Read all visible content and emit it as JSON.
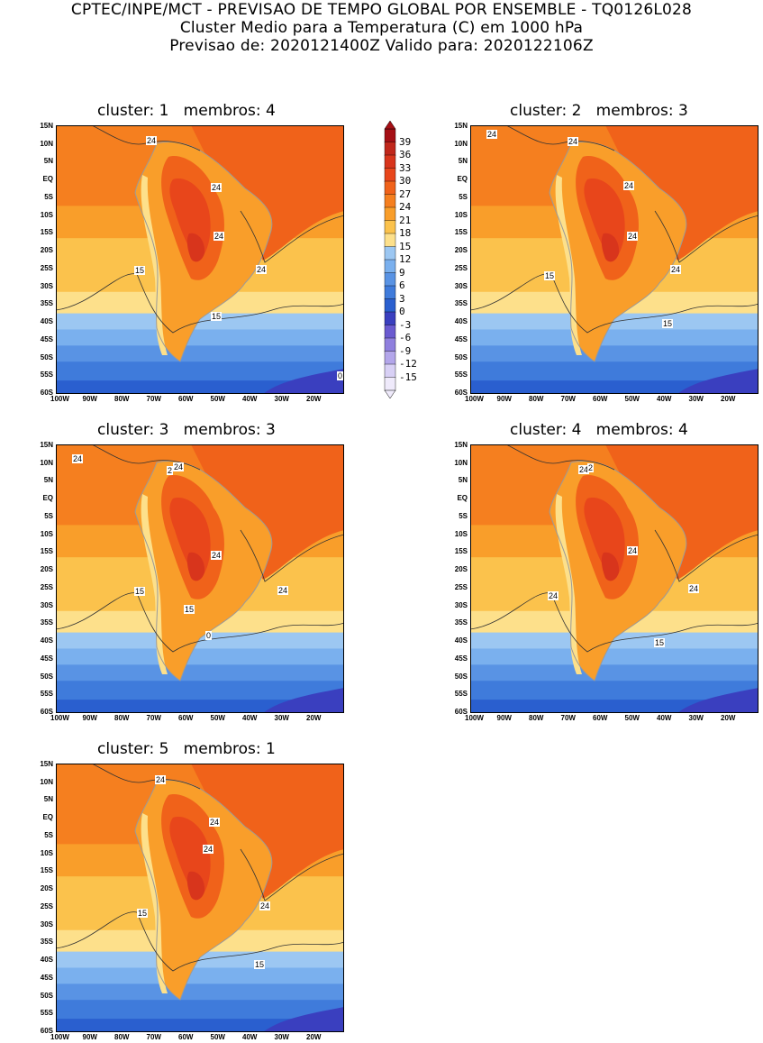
{
  "header": {
    "line1": "CPTEC/INPE/MCT - PREVISAO DE TEMPO GLOBAL POR ENSEMBLE - TQ0126L028",
    "line2": "Cluster Medio para a Temperatura (C) em 1000 hPa",
    "line3": "Previsao de: 2020121400Z   Valido para: 2020122106Z"
  },
  "axes": {
    "lat_labels": [
      "15N",
      "10N",
      "5N",
      "EQ",
      "5S",
      "10S",
      "15S",
      "20S",
      "25S",
      "30S",
      "35S",
      "40S",
      "45S",
      "50S",
      "55S",
      "60S"
    ],
    "lon_labels": [
      "100W",
      "90W",
      "80W",
      "70W",
      "60W",
      "50W",
      "40W",
      "30W",
      "20W"
    ]
  },
  "panels": [
    {
      "title": "cluster: 1   membros: 4",
      "contours": [
        "24",
        "24",
        "24",
        "24",
        "15",
        "15",
        "0"
      ]
    },
    {
      "title": "cluster: 2   membros: 3",
      "contours": [
        "24",
        "24",
        "24",
        "24",
        "24",
        "15",
        "15"
      ]
    },
    {
      "title": "cluster: 3   membros: 3",
      "contours": [
        "24",
        "2",
        "24",
        "24",
        "24",
        "15",
        "15",
        "0"
      ]
    },
    {
      "title": "cluster: 4   membros: 4",
      "contours": [
        "24",
        "2",
        "24",
        "24",
        "24",
        "15",
        "15"
      ]
    },
    {
      "title": "cluster: 5   membros: 1",
      "contours": [
        "24",
        "24",
        "24",
        "24",
        "15",
        "15"
      ]
    }
  ],
  "colorbar": {
    "levels": [
      "39",
      "36",
      "33",
      "30",
      "27",
      "24",
      "21",
      "18",
      "15",
      "12",
      "9",
      "6",
      "3",
      "0",
      "-3",
      "-6",
      "-9",
      "-12",
      "-15"
    ],
    "colors": [
      "#a50f15",
      "#c0271b",
      "#d8351c",
      "#e8461b",
      "#f0621a",
      "#f57f1f",
      "#f99e2a",
      "#fbc24c",
      "#fde08b",
      "#9cc7f2",
      "#7ab0ee",
      "#5993e4",
      "#3f7bdb",
      "#2a5fcf",
      "#3a3fbf",
      "#6a5ad0",
      "#8f7fde",
      "#b3a6ea",
      "#d8d0f5",
      "#efeafb"
    ]
  }
}
